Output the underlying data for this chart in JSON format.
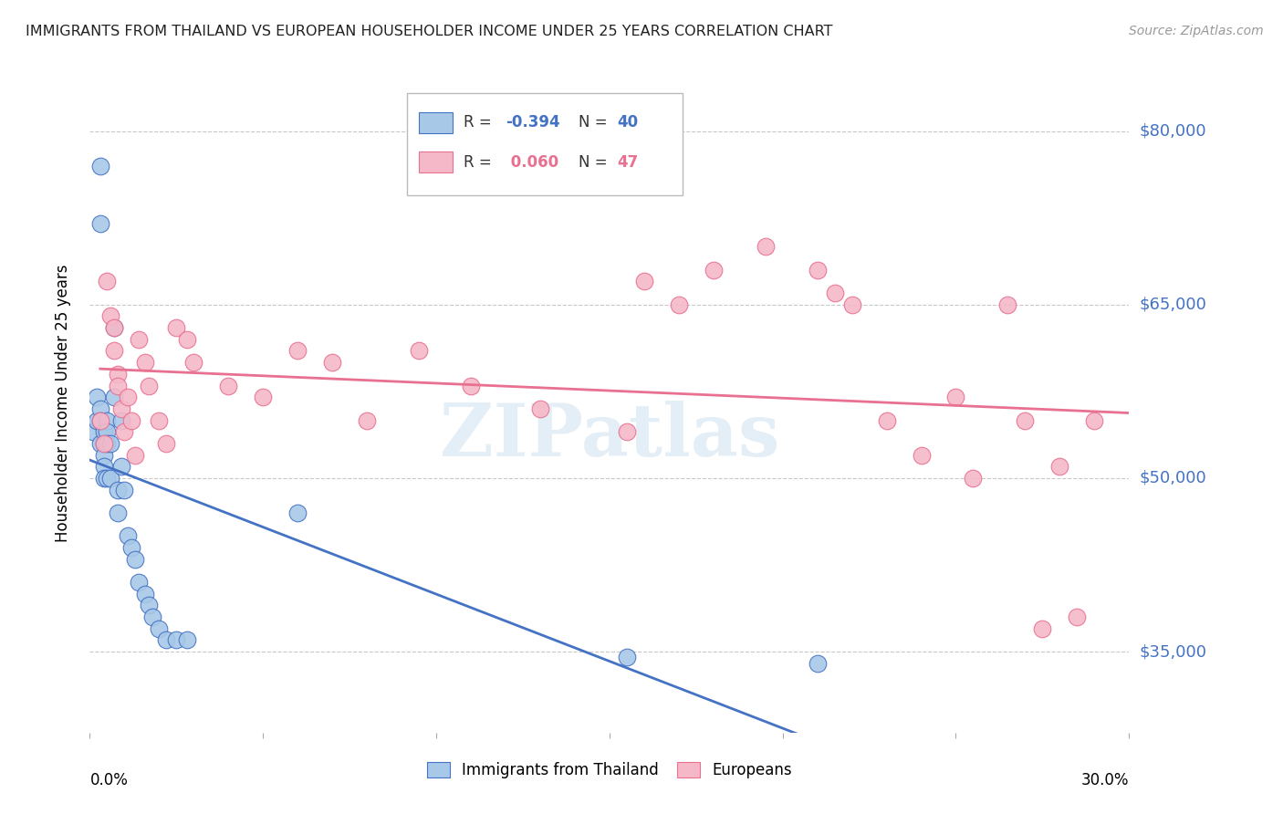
{
  "title": "IMMIGRANTS FROM THAILAND VS EUROPEAN HOUSEHOLDER INCOME UNDER 25 YEARS CORRELATION CHART",
  "source": "Source: ZipAtlas.com",
  "ylabel": "Householder Income Under 25 years",
  "xlim": [
    0.0,
    0.3
  ],
  "ylim": [
    28000,
    85000
  ],
  "yticks": [
    35000,
    50000,
    65000,
    80000
  ],
  "ytick_labels": [
    "$35,000",
    "$50,000",
    "$65,000",
    "$80,000"
  ],
  "background_color": "#ffffff",
  "grid_color": "#c8c8c8",
  "watermark": "ZIPatlas",
  "thailand_color": "#a8c8e8",
  "european_color": "#f5b8c8",
  "thailand_line_color": "#4472c4",
  "european_line_color": "#e87090",
  "ytick_color": "#4472c4",
  "thailand_x": [
    0.001,
    0.002,
    0.002,
    0.003,
    0.003,
    0.003,
    0.003,
    0.003,
    0.004,
    0.004,
    0.004,
    0.004,
    0.004,
    0.005,
    0.005,
    0.005,
    0.005,
    0.006,
    0.006,
    0.007,
    0.007,
    0.008,
    0.008,
    0.009,
    0.009,
    0.01,
    0.011,
    0.012,
    0.013,
    0.014,
    0.016,
    0.017,
    0.018,
    0.02,
    0.022,
    0.025,
    0.028,
    0.06,
    0.155,
    0.21
  ],
  "thailand_y": [
    54000,
    57000,
    55000,
    77000,
    72000,
    56000,
    55000,
    53000,
    54000,
    53000,
    52000,
    51000,
    50000,
    55000,
    54000,
    53000,
    50000,
    53000,
    50000,
    63000,
    57000,
    49000,
    47000,
    55000,
    51000,
    49000,
    45000,
    44000,
    43000,
    41000,
    40000,
    39000,
    38000,
    37000,
    36000,
    36000,
    36000,
    47000,
    34500,
    34000
  ],
  "european_x": [
    0.003,
    0.004,
    0.005,
    0.006,
    0.007,
    0.007,
    0.008,
    0.008,
    0.009,
    0.01,
    0.011,
    0.012,
    0.013,
    0.014,
    0.016,
    0.017,
    0.02,
    0.022,
    0.025,
    0.028,
    0.03,
    0.04,
    0.05,
    0.06,
    0.07,
    0.08,
    0.095,
    0.11,
    0.13,
    0.155,
    0.16,
    0.17,
    0.18,
    0.195,
    0.21,
    0.215,
    0.22,
    0.23,
    0.24,
    0.25,
    0.255,
    0.265,
    0.27,
    0.275,
    0.28,
    0.285,
    0.29
  ],
  "european_y": [
    55000,
    53000,
    67000,
    64000,
    63000,
    61000,
    59000,
    58000,
    56000,
    54000,
    57000,
    55000,
    52000,
    62000,
    60000,
    58000,
    55000,
    53000,
    63000,
    62000,
    60000,
    58000,
    57000,
    61000,
    60000,
    55000,
    61000,
    58000,
    56000,
    54000,
    67000,
    65000,
    68000,
    70000,
    68000,
    66000,
    65000,
    55000,
    52000,
    57000,
    50000,
    65000,
    55000,
    37000,
    51000,
    38000,
    55000
  ]
}
